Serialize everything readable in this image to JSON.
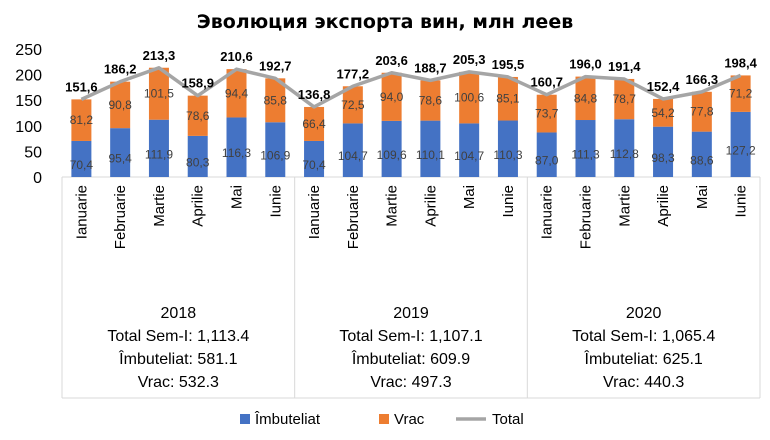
{
  "chart_data": {
    "type": "bar",
    "title": "Эволюция экспорта вин, млн леев",
    "ylim": [
      0,
      250
    ],
    "yticks": [
      "0",
      "50",
      "100",
      "150",
      "200",
      "250"
    ],
    "groups": [
      {
        "year": "2018",
        "summary": [
          "2018",
          "Total Sem-I: 1,113.4",
          "Îmbuteliat: 581.1",
          "Vrac: 532.3"
        ],
        "months": [
          "Ianuarie",
          "Februarie",
          "Martie",
          "Aprilie",
          "Mai",
          "Iunie"
        ],
        "imbuteliat": [
          70.4,
          95.4,
          111.9,
          80.3,
          116.3,
          106.9
        ],
        "vrac": [
          81.2,
          90.8,
          101.5,
          78.6,
          94.4,
          85.8
        ],
        "total": [
          151.6,
          186.2,
          213.3,
          158.9,
          210.6,
          192.7
        ],
        "imbuteliat_labels": [
          "70,4",
          "95,4",
          "111,9",
          "80,3",
          "116,3",
          "106,9"
        ],
        "vrac_labels": [
          "81,2",
          "90,8",
          "101,5",
          "78,6",
          "94,4",
          "85,8"
        ],
        "total_labels": [
          "151,6",
          "186,2",
          "213,3",
          "158,9",
          "210,6",
          "192,7"
        ]
      },
      {
        "year": "2019",
        "summary": [
          "2019",
          "Total Sem-I: 1,107.1",
          "Îmbuteliat: 609.9",
          "Vrac: 497.3"
        ],
        "months": [
          "Ianuarie",
          "Februarie",
          "Martie",
          "Aprilie",
          "Mai",
          "Iunie"
        ],
        "imbuteliat": [
          70.4,
          104.7,
          109.6,
          110.1,
          104.7,
          110.3
        ],
        "vrac": [
          66.4,
          72.5,
          94.0,
          78.6,
          100.6,
          85.1
        ],
        "total": [
          136.8,
          177.2,
          203.6,
          188.7,
          205.3,
          195.5
        ],
        "imbuteliat_labels": [
          "70,4",
          "104,7",
          "109,6",
          "110,1",
          "104,7",
          "110,3"
        ],
        "vrac_labels": [
          "66,4",
          "72,5",
          "94,0",
          "78,6",
          "100,6",
          "85,1"
        ],
        "total_labels": [
          "136,8",
          "177,2",
          "203,6",
          "188,7",
          "205,3",
          "195,5"
        ]
      },
      {
        "year": "2020",
        "summary": [
          "2020",
          "Total Sem-I: 1,065.4",
          "Îmbuteliat: 625.1",
          "Vrac: 440.3"
        ],
        "months": [
          "Ianuarie",
          "Februarie",
          "Martie",
          "Aprilie",
          "Mai",
          "Iunie"
        ],
        "imbuteliat": [
          87.0,
          111.3,
          112.8,
          98.3,
          88.6,
          127.2
        ],
        "vrac": [
          73.7,
          84.8,
          78.7,
          54.2,
          77.8,
          71.2
        ],
        "total": [
          160.7,
          196.0,
          191.4,
          152.4,
          166.3,
          198.4
        ],
        "imbuteliat_labels": [
          "87,0",
          "111,3",
          "112,8",
          "98,3",
          "88,6",
          "127,2"
        ],
        "vrac_labels": [
          "73,7",
          "84,8",
          "78,7",
          "54,2",
          "77,8",
          "71,2"
        ],
        "total_labels": [
          "160,7",
          "196,0",
          "191,4",
          "152,4",
          "166,3",
          "198,4"
        ]
      }
    ],
    "series": [
      {
        "name": "Îmbuteliat",
        "color": "#4472c4"
      },
      {
        "name": "Vrac",
        "color": "#ed7d31"
      },
      {
        "name": "Total",
        "color": "#a5a5a5"
      }
    ],
    "legend_position": "bottom",
    "grid": false
  }
}
